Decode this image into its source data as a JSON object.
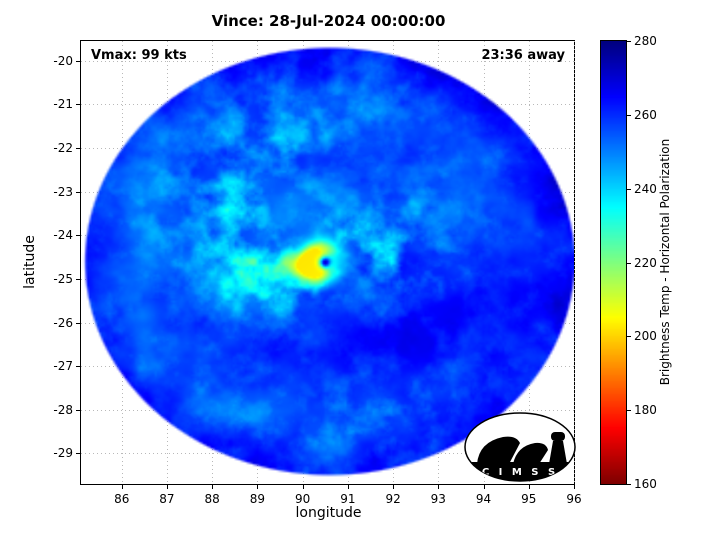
{
  "title": "Vince: 28-Jul-2024 00:00:00",
  "overlay": {
    "vmax_label": "Vmax: 99 kts",
    "away_label": "23:36 away"
  },
  "axes": {
    "xlabel": "longitude",
    "ylabel": "latitude",
    "xticks": [
      86,
      87,
      88,
      89,
      90,
      91,
      92,
      93,
      94,
      95,
      96
    ],
    "yticks": [
      -20,
      -21,
      -22,
      -23,
      -24,
      -25,
      -26,
      -27,
      -28,
      -29
    ],
    "xlim": [
      85.1,
      96.0
    ],
    "ylim": [
      -29.7,
      -19.55
    ],
    "grid": true
  },
  "colorbar": {
    "label": "Brightness Temp - Horizontal Polarization",
    "ticks": [
      160,
      180,
      200,
      220,
      240,
      260,
      280
    ],
    "min": 160,
    "max": 280,
    "colormap": "jet-reversed",
    "top_color": "#00008f",
    "bottom_color": "#8f0000"
  },
  "logo": {
    "text": "C I M S S"
  },
  "chart_data": {
    "type": "heatmap",
    "title": "Vince: 28-Jul-2024 00:00:00",
    "storm_name": "Vince",
    "timestamp": "28-Jul-2024 00:00:00",
    "vmax_kts": 99,
    "obs_offset": "23:36 away",
    "field": "Brightness Temp - Horizontal Polarization",
    "value_range": [
      160,
      280
    ],
    "range": [
      160,
      280
    ],
    "xlabel": "longitude",
    "ylabel": "latitude",
    "legend_position": "right-colorbar",
    "background_temp": 256,
    "swath": {
      "center_lon": 90.6,
      "center_lat": -24.6,
      "radius_lon_deg": 5.44,
      "radius_lat_deg": 4.92
    },
    "eye": {
      "lon": 90.5,
      "lat": -24.62,
      "eye_dot_temp": 272
    },
    "eyewall": {
      "lon": 90.12,
      "lat": -24.7,
      "temp": 202,
      "desc": "cold yellow-green eyewall arc west/southwest of eye"
    },
    "warm_patch": {
      "lon": 92.35,
      "lat": -26.3,
      "temp": 272,
      "desc": "dark-blue warm region southeast of center"
    },
    "north_band": {
      "lon": 89.6,
      "lat": -23.15,
      "temp": 238,
      "desc": "cyan cold cloud band north of eye"
    },
    "features": [
      {
        "name": "eye",
        "lon": 90.5,
        "lat": -24.62,
        "temp_K": 272
      },
      {
        "name": "eyewall",
        "lon": 90.12,
        "lat": -24.7,
        "temp_K": 202
      },
      {
        "name": "warm-dark-patch",
        "lon": 92.35,
        "lat": -26.3,
        "temp_K": 272
      },
      {
        "name": "cyan-band-north",
        "lon": 89.6,
        "lat": -23.15,
        "temp_K": 238
      },
      {
        "name": "background-cloud-field",
        "temp_K": 256
      }
    ]
  }
}
